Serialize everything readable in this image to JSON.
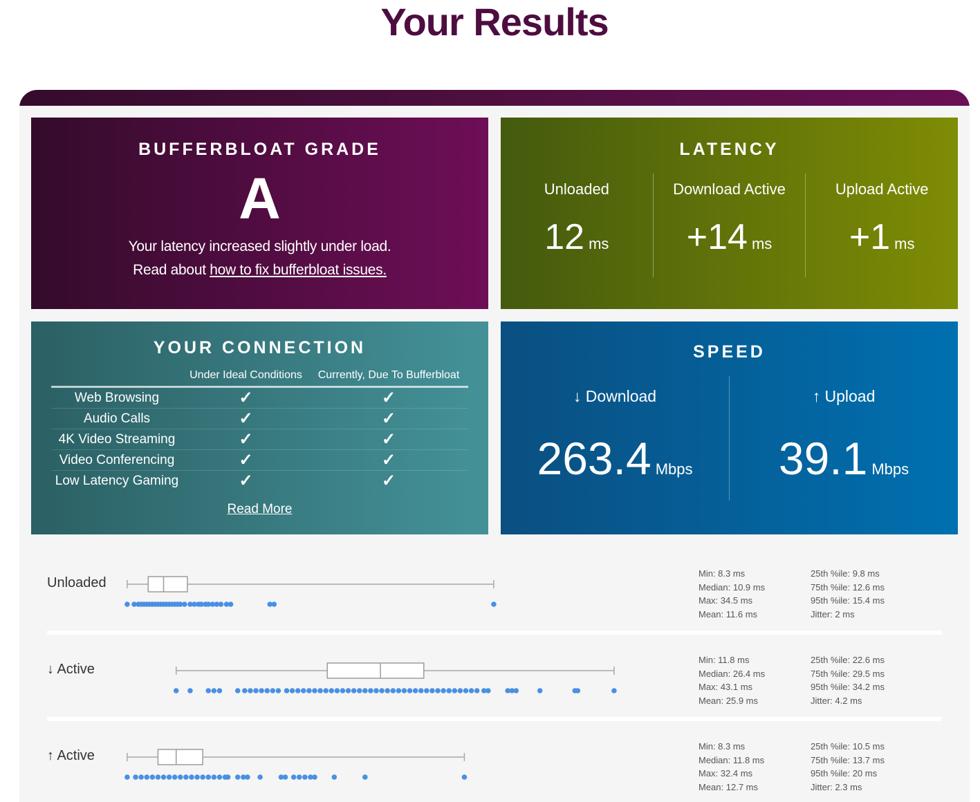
{
  "title": "Your Results",
  "grade": {
    "title": "BUFFERBLOAT GRADE",
    "letter": "A",
    "message": "Your latency increased slightly under load.",
    "read_prefix": "Read about ",
    "read_link": "how to fix bufferbloat issues."
  },
  "latency": {
    "title": "LATENCY",
    "items": [
      {
        "label": "Unloaded",
        "value": "12",
        "unit": "ms"
      },
      {
        "label": "Download Active",
        "value": "+14",
        "unit": "ms"
      },
      {
        "label": "Upload Active",
        "value": "+1",
        "unit": "ms"
      }
    ]
  },
  "connection": {
    "title": "YOUR CONNECTION",
    "col1": "Under Ideal Conditions",
    "col2": "Currently, Due To Bufferbloat",
    "rows": [
      {
        "label": "Web Browsing",
        "ideal": "✓",
        "current": "✓"
      },
      {
        "label": "Audio Calls",
        "ideal": "✓",
        "current": "✓"
      },
      {
        "label": "4K Video Streaming",
        "ideal": "✓",
        "current": "✓"
      },
      {
        "label": "Video Conferencing",
        "ideal": "✓",
        "current": "✓"
      },
      {
        "label": "Low Latency Gaming",
        "ideal": "✓",
        "current": "✓"
      }
    ],
    "read_more": "Read More"
  },
  "speed": {
    "title": "SPEED",
    "download": {
      "label": "↓ Download",
      "value": "263.4",
      "unit": "Mbps"
    },
    "upload": {
      "label": "↑ Upload",
      "value": "39.1",
      "unit": "Mbps"
    }
  },
  "colors": {
    "grade": "#6e0e57",
    "latency": "#7f8c04",
    "connection": "#449299",
    "speed": "#0070b0",
    "dot": "#4a90e2"
  },
  "chart_data": [
    {
      "type": "boxplot",
      "label": "Unloaded",
      "min": 8.3,
      "p25": 9.8,
      "median": 10.9,
      "p75": 12.6,
      "max": 34.5,
      "stats": [
        "Min: 8.3 ms",
        "Median: 10.9 ms",
        "Max: 34.5 ms",
        "Mean: 11.6 ms",
        "25th %ile: 9.8 ms",
        "75th %ile: 12.6 ms",
        "95th %ile: 15.4 ms",
        "Jitter: 2 ms"
      ],
      "samples": [
        8.3,
        8.8,
        9.1,
        9.3,
        9.5,
        9.7,
        9.9,
        10.1,
        10.3,
        10.5,
        10.7,
        10.9,
        11.1,
        11.3,
        11.5,
        11.7,
        11.9,
        12.1,
        12.4,
        12.8,
        13.1,
        13.4,
        13.6,
        13.9,
        14.1,
        14.4,
        14.7,
        15.0,
        15.4,
        15.7,
        18.5,
        18.8,
        34.5
      ]
    },
    {
      "type": "boxplot",
      "label": "↓ Active",
      "min": 11.8,
      "p25": 22.6,
      "median": 26.4,
      "p75": 29.5,
      "max": 43.1,
      "stats": [
        "Min: 11.8 ms",
        "Median: 26.4 ms",
        "Max: 43.1 ms",
        "Mean: 25.9 ms",
        "25th %ile: 22.6 ms",
        "75th %ile: 29.5 ms",
        "95th %ile: 34.2 ms",
        "Jitter: 4.2 ms"
      ],
      "samples": [
        11.8,
        12.8,
        14.1,
        14.5,
        14.9,
        16.2,
        16.7,
        17.1,
        17.5,
        17.9,
        18.3,
        18.7,
        19.1,
        19.7,
        20.1,
        20.5,
        20.9,
        21.3,
        21.7,
        22.1,
        22.5,
        22.9,
        23.3,
        23.7,
        24.1,
        24.5,
        24.9,
        25.3,
        25.7,
        26.1,
        26.5,
        26.9,
        27.3,
        27.7,
        28.1,
        28.5,
        28.9,
        29.3,
        29.7,
        30.1,
        30.5,
        30.9,
        31.3,
        31.7,
        32.1,
        32.5,
        32.9,
        33.3,
        33.8,
        34.1,
        35.5,
        35.8,
        36.1,
        37.8,
        40.3,
        40.5,
        43.1
      ]
    },
    {
      "type": "boxplot",
      "label": "↑ Active",
      "min": 8.3,
      "p25": 10.5,
      "median": 11.8,
      "p75": 13.7,
      "max": 32.4,
      "stats": [
        "Min: 8.3 ms",
        "Median: 11.8 ms",
        "Max: 32.4 ms",
        "Mean: 12.7 ms",
        "25th %ile: 10.5 ms",
        "75th %ile: 13.7 ms",
        "95th %ile: 20 ms",
        "Jitter: 2.3 ms"
      ],
      "samples": [
        8.3,
        8.9,
        9.3,
        9.7,
        10.1,
        10.5,
        10.9,
        11.3,
        11.7,
        12.1,
        12.5,
        12.9,
        13.3,
        13.7,
        14.1,
        14.5,
        14.9,
        15.3,
        15.5,
        16.2,
        16.6,
        16.9,
        17.8,
        19.3,
        19.6,
        20.2,
        20.6,
        21.0,
        21.4,
        21.7,
        23.1,
        25.3,
        32.4
      ]
    }
  ]
}
